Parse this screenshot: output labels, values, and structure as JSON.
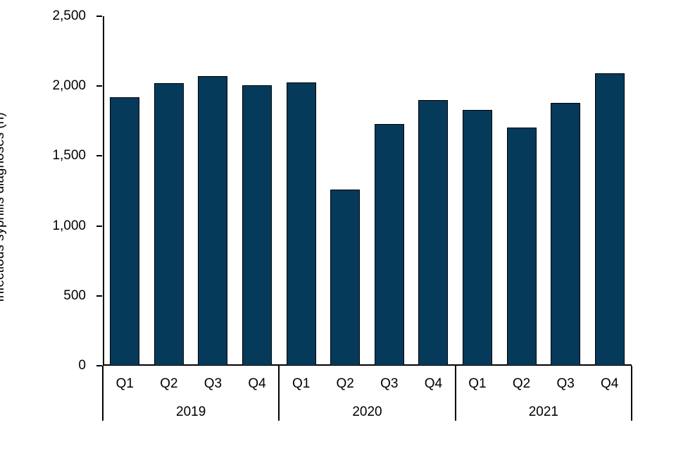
{
  "chart_data": {
    "type": "bar",
    "title": "",
    "xlabel": "",
    "ylabel": "Infectious syphilis diagnoses (n)",
    "ylim": [
      0,
      2500
    ],
    "ytick_interval": 500,
    "yticks": [
      {
        "value": 0,
        "label": "0"
      },
      {
        "value": 500,
        "label": "500"
      },
      {
        "value": 1000,
        "label": "1,000"
      },
      {
        "value": 1500,
        "label": "1,500"
      },
      {
        "value": 2000,
        "label": "2,000"
      },
      {
        "value": 2500,
        "label": "2,500"
      }
    ],
    "grid": false,
    "legend": null,
    "bar_color": "#053a5b",
    "bar_border_color": "#000000",
    "categories": [
      "Q1",
      "Q2",
      "Q3",
      "Q4",
      "Q1",
      "Q2",
      "Q3",
      "Q4",
      "Q1",
      "Q2",
      "Q3",
      "Q4"
    ],
    "groups": [
      {
        "year": "2019",
        "quarters": [
          "Q1",
          "Q2",
          "Q3",
          "Q4"
        ],
        "values": [
          1920,
          2020,
          2070,
          2005
        ]
      },
      {
        "year": "2020",
        "quarters": [
          "Q1",
          "Q2",
          "Q3",
          "Q4"
        ],
        "values": [
          2025,
          1260,
          1730,
          1900
        ]
      },
      {
        "year": "2021",
        "quarters": [
          "Q1",
          "Q2",
          "Q3",
          "Q4"
        ],
        "values": [
          1830,
          1705,
          1880,
          2090
        ]
      }
    ]
  }
}
